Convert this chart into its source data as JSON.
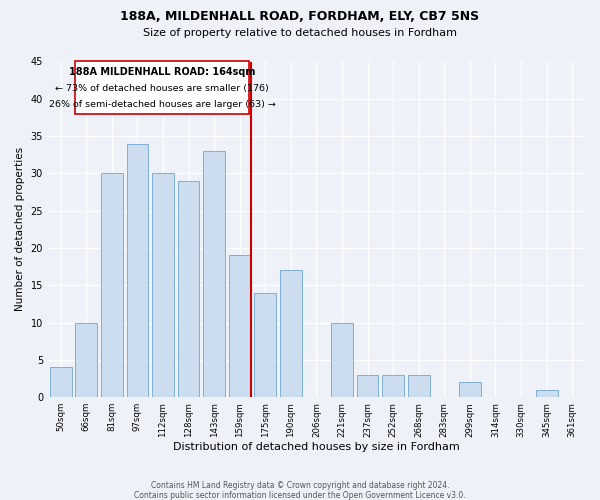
{
  "title": "188A, MILDENHALL ROAD, FORDHAM, ELY, CB7 5NS",
  "subtitle": "Size of property relative to detached houses in Fordham",
  "xlabel": "Distribution of detached houses by size in Fordham",
  "ylabel": "Number of detached properties",
  "bar_labels": [
    "50sqm",
    "66sqm",
    "81sqm",
    "97sqm",
    "112sqm",
    "128sqm",
    "143sqm",
    "159sqm",
    "175sqm",
    "190sqm",
    "206sqm",
    "221sqm",
    "237sqm",
    "252sqm",
    "268sqm",
    "283sqm",
    "299sqm",
    "314sqm",
    "330sqm",
    "345sqm",
    "361sqm"
  ],
  "bar_values": [
    4,
    10,
    30,
    34,
    30,
    29,
    33,
    19,
    14,
    17,
    0,
    10,
    3,
    3,
    3,
    0,
    2,
    0,
    0,
    1,
    0
  ],
  "bar_color": "#ccddf0",
  "bar_edge_color": "#80aed4",
  "vline_color": "#cc0000",
  "annotation_title": "188A MILDENHALL ROAD: 164sqm",
  "annotation_line1": "← 73% of detached houses are smaller (176)",
  "annotation_line2": "26% of semi-detached houses are larger (63) →",
  "annotation_box_color": "#ffffff",
  "annotation_box_edge": "#cc0000",
  "ylim": [
    0,
    45
  ],
  "yticks": [
    0,
    5,
    10,
    15,
    20,
    25,
    30,
    35,
    40,
    45
  ],
  "footnote1": "Contains HM Land Registry data © Crown copyright and database right 2024.",
  "footnote2": "Contains public sector information licensed under the Open Government Licence v3.0.",
  "bg_color": "#eef2f8"
}
